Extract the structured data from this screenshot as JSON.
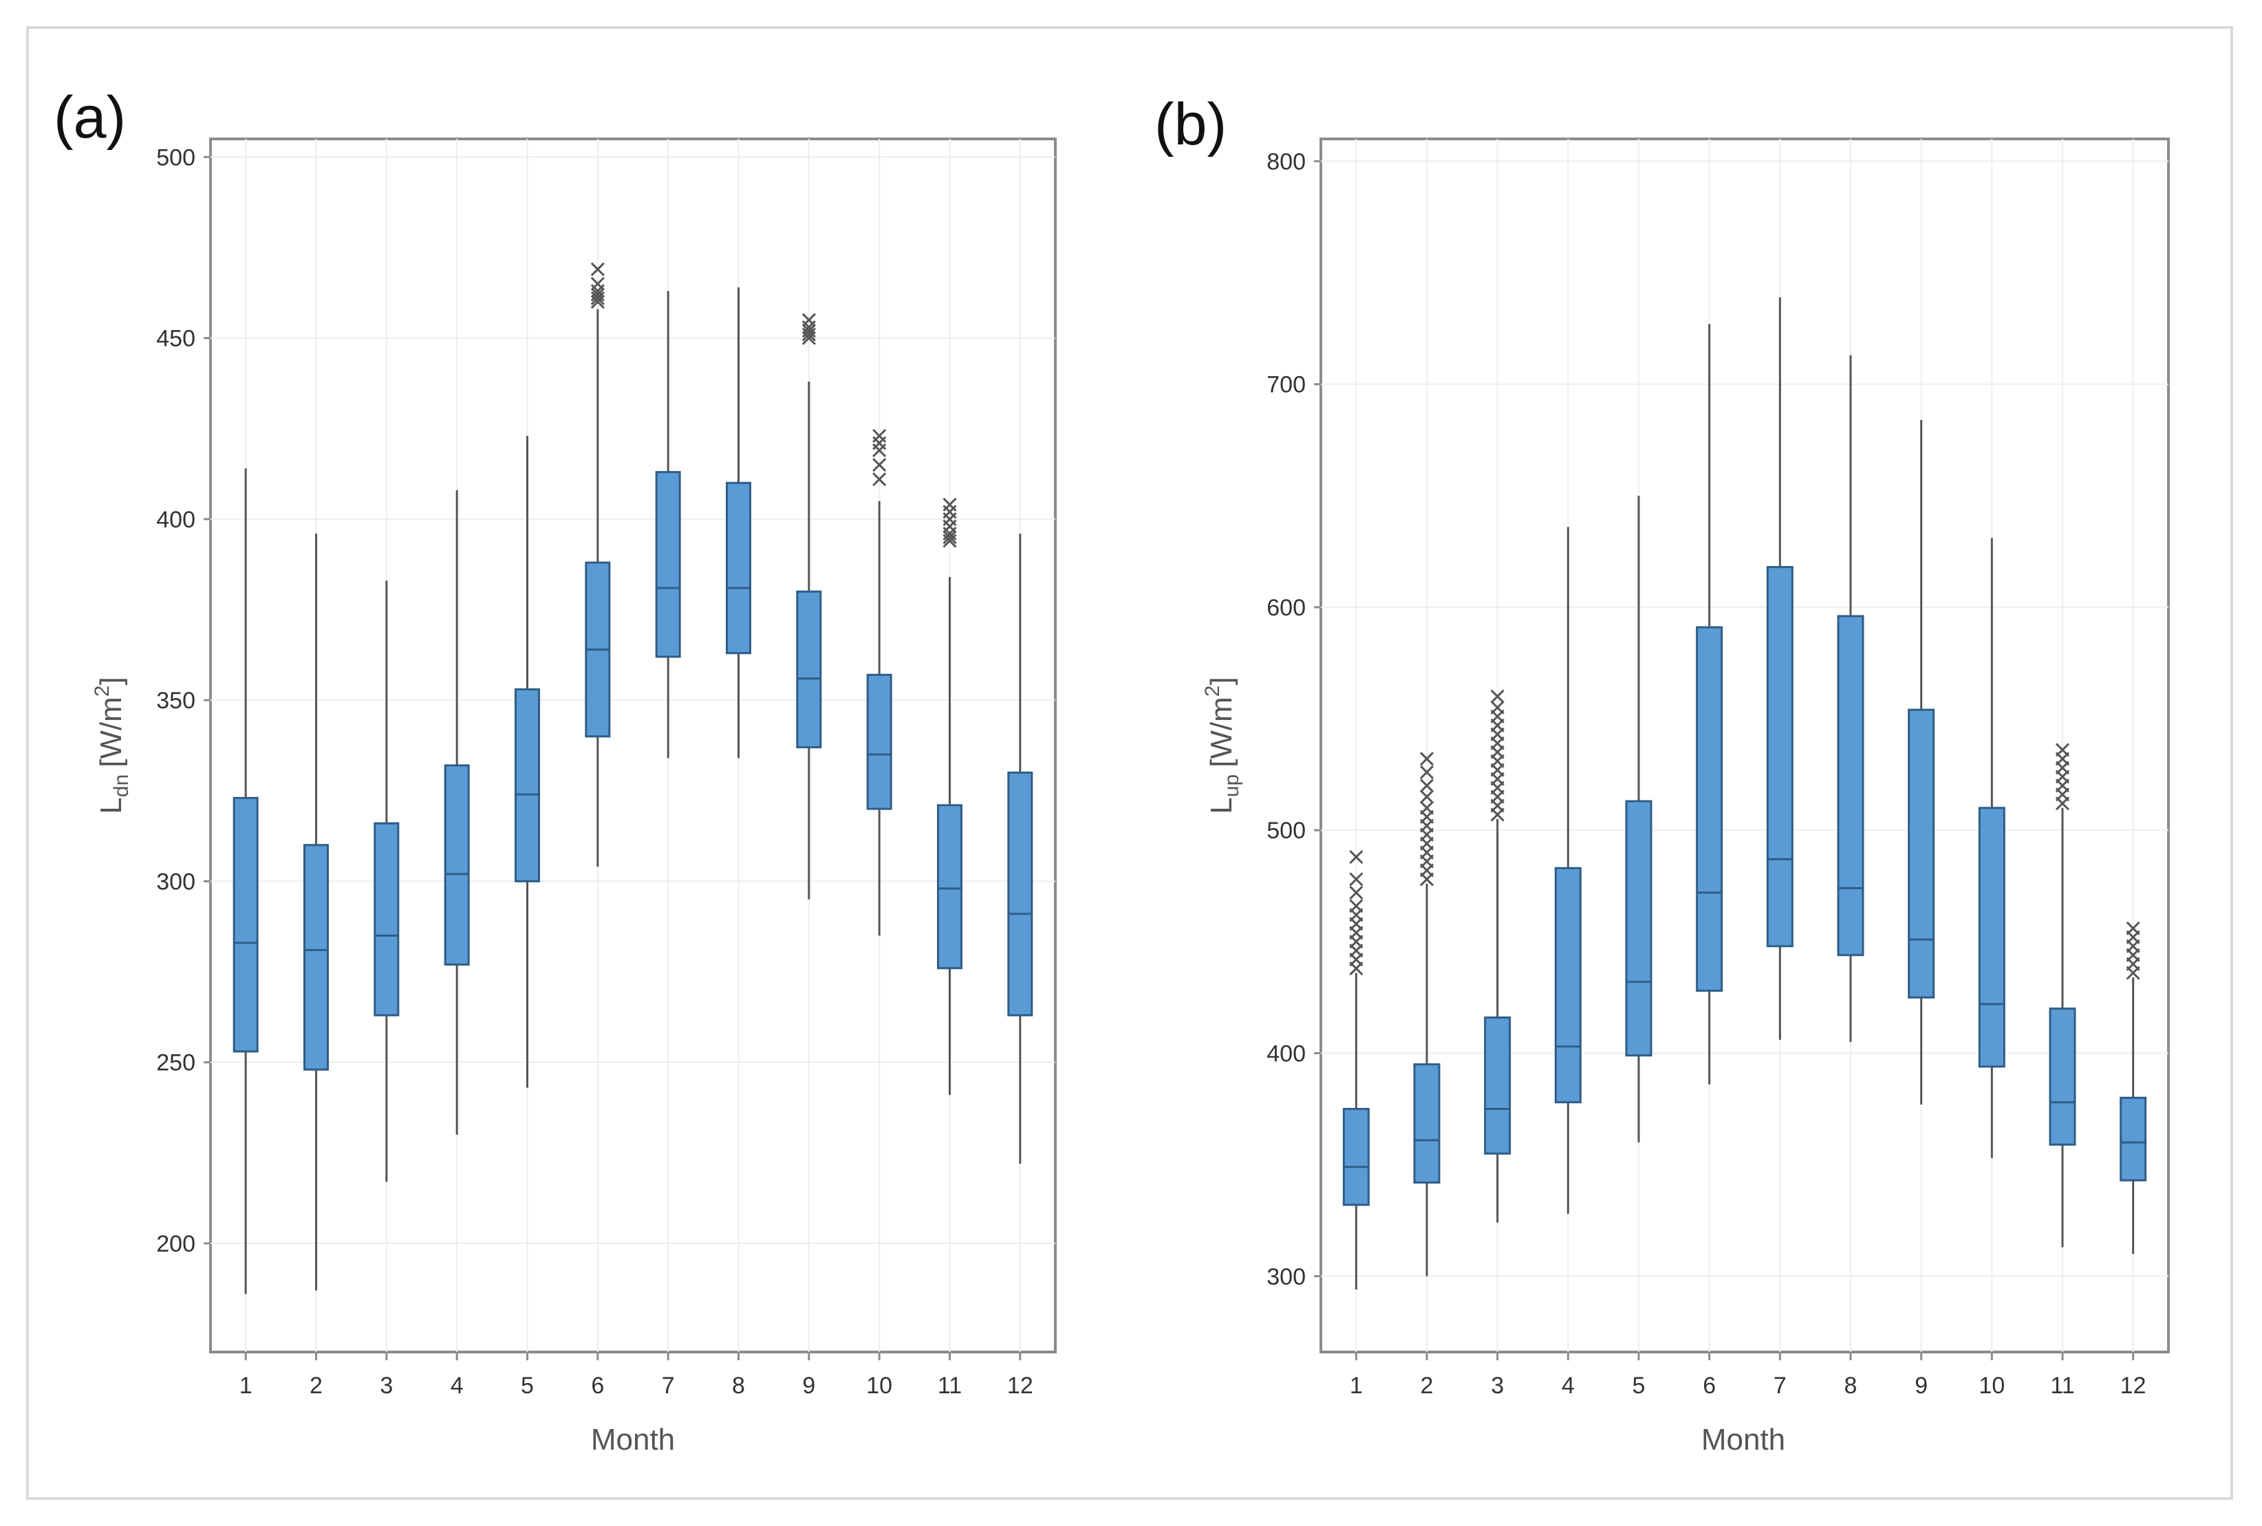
{
  "chart_data": [
    {
      "type": "box",
      "panel_label": "(a)",
      "title": "",
      "xlabel": "Month",
      "ylabel_main": "L",
      "ylabel_sub": "dn",
      "ylabel_unit": "[W/m",
      "ylabel_sup": "2",
      "ylabel_close": "]",
      "categories": [
        "1",
        "2",
        "3",
        "4",
        "5",
        "6",
        "7",
        "8",
        "9",
        "10",
        "11",
        "12"
      ],
      "ylim": [
        170,
        505
      ],
      "yticks": [
        200,
        250,
        300,
        350,
        400,
        450,
        500
      ],
      "boxes": [
        {
          "month": "1",
          "min": 186,
          "q1": 253,
          "median": 283,
          "q3": 323,
          "max": 414,
          "outliers": []
        },
        {
          "month": "2",
          "min": 187,
          "q1": 248,
          "median": 281,
          "q3": 310,
          "max": 396,
          "outliers": []
        },
        {
          "month": "3",
          "min": 217,
          "q1": 263,
          "median": 285,
          "q3": 316,
          "max": 383,
          "outliers": []
        },
        {
          "month": "4",
          "min": 230,
          "q1": 277,
          "median": 302,
          "q3": 332,
          "max": 408,
          "outliers": []
        },
        {
          "month": "5",
          "min": 243,
          "q1": 300,
          "median": 324,
          "q3": 353,
          "max": 423,
          "outliers": []
        },
        {
          "month": "6",
          "min": 304,
          "q1": 340,
          "median": 364,
          "q3": 388,
          "max": 458,
          "outliers": [
            460,
            461,
            462,
            463,
            465,
            469
          ]
        },
        {
          "month": "7",
          "min": 334,
          "q1": 362,
          "median": 381,
          "q3": 413,
          "max": 463,
          "outliers": []
        },
        {
          "month": "8",
          "min": 334,
          "q1": 363,
          "median": 381,
          "q3": 410,
          "max": 464,
          "outliers": []
        },
        {
          "month": "9",
          "min": 295,
          "q1": 337,
          "median": 356,
          "q3": 380,
          "max": 438,
          "outliers": [
            450,
            451,
            452,
            453,
            455
          ]
        },
        {
          "month": "10",
          "min": 285,
          "q1": 320,
          "median": 335,
          "q3": 357,
          "max": 405,
          "outliers": [
            411,
            415,
            419,
            421,
            423
          ]
        },
        {
          "month": "11",
          "min": 241,
          "q1": 276,
          "median": 298,
          "q3": 321,
          "max": 384,
          "outliers": [
            394,
            395,
            396,
            398,
            400,
            402,
            404
          ]
        },
        {
          "month": "12",
          "min": 222,
          "q1": 263,
          "median": 291,
          "q3": 330,
          "max": 396,
          "outliers": []
        }
      ]
    },
    {
      "type": "box",
      "panel_label": "(b)",
      "title": "",
      "xlabel": "Month",
      "ylabel_main": "L",
      "ylabel_sub": "up",
      "ylabel_unit": "[W/m",
      "ylabel_sup": "2",
      "ylabel_close": "]",
      "categories": [
        "1",
        "2",
        "3",
        "4",
        "5",
        "6",
        "7",
        "8",
        "9",
        "10",
        "11",
        "12"
      ],
      "ylim": [
        266,
        810
      ],
      "yticks": [
        300,
        400,
        500,
        600,
        700,
        800
      ],
      "boxes": [
        {
          "month": "1",
          "min": 294,
          "q1": 332,
          "median": 349,
          "q3": 375,
          "max": 436,
          "outliers": [
            438,
            442,
            446,
            450,
            454,
            458,
            462,
            466,
            472,
            478,
            488
          ]
        },
        {
          "month": "2",
          "min": 300,
          "q1": 342,
          "median": 361,
          "q3": 395,
          "max": 476,
          "outliers": [
            478,
            482,
            486,
            490,
            494,
            498,
            502,
            506,
            510,
            515,
            520,
            526,
            532
          ]
        },
        {
          "month": "3",
          "min": 324,
          "q1": 355,
          "median": 375,
          "q3": 416,
          "max": 505,
          "outliers": [
            507,
            511,
            515,
            519,
            523,
            527,
            531,
            535,
            539,
            543,
            547,
            551,
            555,
            560
          ]
        },
        {
          "month": "4",
          "min": 328,
          "q1": 378,
          "median": 403,
          "q3": 483,
          "max": 636,
          "outliers": []
        },
        {
          "month": "5",
          "min": 360,
          "q1": 399,
          "median": 432,
          "q3": 513,
          "max": 650,
          "outliers": []
        },
        {
          "month": "6",
          "min": 386,
          "q1": 428,
          "median": 472,
          "q3": 591,
          "max": 727,
          "outliers": []
        },
        {
          "month": "7",
          "min": 406,
          "q1": 448,
          "median": 487,
          "q3": 618,
          "max": 739,
          "outliers": []
        },
        {
          "month": "8",
          "min": 405,
          "q1": 444,
          "median": 474,
          "q3": 596,
          "max": 713,
          "outliers": []
        },
        {
          "month": "9",
          "min": 377,
          "q1": 425,
          "median": 451,
          "q3": 554,
          "max": 684,
          "outliers": []
        },
        {
          "month": "10",
          "min": 353,
          "q1": 394,
          "median": 422,
          "q3": 510,
          "max": 631,
          "outliers": []
        },
        {
          "month": "11",
          "min": 313,
          "q1": 359,
          "median": 378,
          "q3": 420,
          "max": 510,
          "outliers": [
            512,
            516,
            520,
            524,
            528,
            532,
            536
          ]
        },
        {
          "month": "12",
          "min": 310,
          "q1": 343,
          "median": 360,
          "q3": 380,
          "max": 434,
          "outliers": [
            436,
            440,
            444,
            448,
            452,
            456
          ]
        }
      ]
    }
  ],
  "colors": {
    "box_fill": "#5b9bd5",
    "box_stroke": "#2f5d86",
    "whisker": "#555555",
    "outlier": "#555555",
    "grid": "#eeeeee",
    "axis_frame": "#8c8c8c"
  }
}
